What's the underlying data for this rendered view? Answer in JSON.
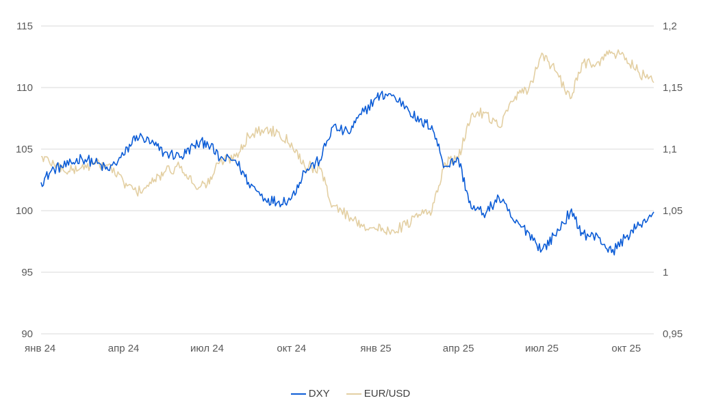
{
  "colors": {
    "dxy": "#0a5bd6",
    "eurusd": "#e3cfa2",
    "grid": "#d9d9d9",
    "text": "#595959"
  },
  "legend": {
    "dxy_label": "DXY",
    "eurusd_label": "EUR/USD"
  },
  "chart_data": {
    "type": "line",
    "title": "",
    "grid": true,
    "legend_position": "bottom",
    "x": [
      "2024-01-02",
      "2024-01-16",
      "2024-02-01",
      "2024-02-15",
      "2024-03-01",
      "2024-03-15",
      "2024-04-01",
      "2024-04-15",
      "2024-05-01",
      "2024-05-15",
      "2024-06-03",
      "2024-06-17",
      "2024-07-01",
      "2024-07-15",
      "2024-08-01",
      "2024-08-15",
      "2024-09-02",
      "2024-09-16",
      "2024-10-01",
      "2024-10-15",
      "2024-11-01",
      "2024-11-15",
      "2024-12-02",
      "2024-12-16",
      "2025-01-02",
      "2025-01-15",
      "2025-02-03",
      "2025-02-17",
      "2025-03-03",
      "2025-03-17",
      "2025-04-01",
      "2025-04-15",
      "2025-05-01",
      "2025-05-15",
      "2025-06-02",
      "2025-06-16",
      "2025-07-01",
      "2025-07-15",
      "2025-08-01",
      "2025-08-15",
      "2025-09-01",
      "2025-09-15",
      "2025-10-01",
      "2025-10-15",
      "2025-10-31"
    ],
    "x_ticks": [
      "янв 24",
      "апр 24",
      "июл 24",
      "окт 24",
      "янв 25",
      "апр 25",
      "июл 25",
      "окт 25"
    ],
    "x_tick_dates": [
      "2024-01-01",
      "2024-04-01",
      "2024-07-01",
      "2024-10-01",
      "2025-01-01",
      "2025-04-01",
      "2025-07-01",
      "2025-10-01"
    ],
    "y_left": {
      "ticks": [
        "115",
        "110",
        "105",
        "100",
        "95",
        "90"
      ],
      "min": 90,
      "max": 115
    },
    "y_right": {
      "ticks": [
        "1,2",
        "1,15",
        "1,1",
        "1,05",
        "1",
        "0,95"
      ],
      "min": 0.95,
      "max": 1.2
    },
    "series": [
      {
        "name": "DXY",
        "axis": "left",
        "values": [
          102.3,
          103.4,
          103.7,
          104.3,
          103.9,
          103.3,
          104.5,
          106.1,
          105.5,
          104.7,
          104.4,
          105.3,
          105.6,
          104.2,
          104.1,
          102.3,
          101.0,
          100.7,
          101.0,
          103.2,
          104.1,
          106.8,
          106.3,
          107.8,
          109.2,
          109.5,
          108.5,
          107.2,
          106.9,
          103.6,
          104.2,
          100.2,
          99.8,
          101.1,
          99.0,
          98.3,
          96.8,
          98.0,
          99.9,
          98.1,
          97.8,
          96.6,
          97.9,
          98.8,
          99.9
        ]
      },
      {
        "name": "EUR/USD",
        "axis": "right",
        "values": [
          1.094,
          1.088,
          1.082,
          1.085,
          1.088,
          1.087,
          1.073,
          1.065,
          1.072,
          1.081,
          1.086,
          1.071,
          1.071,
          1.09,
          1.094,
          1.111,
          1.116,
          1.114,
          1.105,
          1.087,
          1.084,
          1.054,
          1.046,
          1.039,
          1.035,
          1.034,
          1.038,
          1.047,
          1.049,
          1.089,
          1.092,
          1.128,
          1.13,
          1.118,
          1.143,
          1.147,
          1.178,
          1.164,
          1.141,
          1.17,
          1.171,
          1.179,
          1.174,
          1.162,
          1.154
        ]
      }
    ]
  }
}
